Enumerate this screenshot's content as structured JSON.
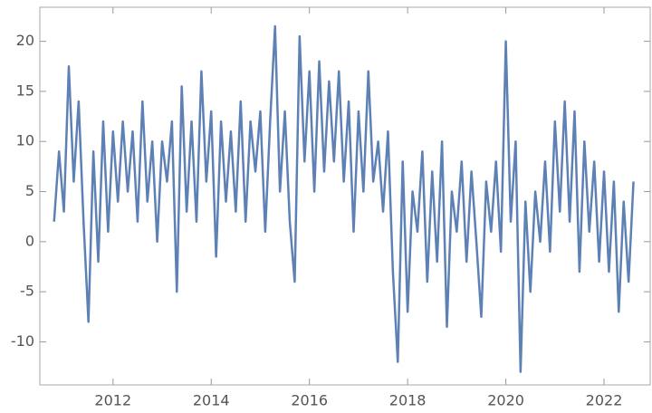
{
  "chart_data": {
    "type": "line",
    "color": "#5e81b5",
    "x": [
      2010.8,
      2010.9,
      2011.0,
      2011.1,
      2011.2,
      2011.3,
      2011.4,
      2011.5,
      2011.6,
      2011.7,
      2011.8,
      2011.9,
      2012.0,
      2012.1,
      2012.2,
      2012.3,
      2012.4,
      2012.5,
      2012.6,
      2012.7,
      2012.8,
      2012.9,
      2013.0,
      2013.1,
      2013.2,
      2013.3,
      2013.4,
      2013.5,
      2013.6,
      2013.7,
      2013.8,
      2013.9,
      2014.0,
      2014.1,
      2014.2,
      2014.3,
      2014.4,
      2014.5,
      2014.6,
      2014.7,
      2014.8,
      2014.9,
      2015.0,
      2015.1,
      2015.2,
      2015.3,
      2015.4,
      2015.5,
      2015.6,
      2015.7,
      2015.8,
      2015.9,
      2016.0,
      2016.1,
      2016.2,
      2016.3,
      2016.4,
      2016.5,
      2016.6,
      2016.7,
      2016.8,
      2016.9,
      2017.0,
      2017.1,
      2017.2,
      2017.3,
      2017.4,
      2017.5,
      2017.6,
      2017.7,
      2017.8,
      2017.9,
      2018.0,
      2018.1,
      2018.2,
      2018.3,
      2018.4,
      2018.5,
      2018.6,
      2018.7,
      2018.8,
      2018.9,
      2019.0,
      2019.1,
      2019.2,
      2019.3,
      2019.4,
      2019.5,
      2019.6,
      2019.7,
      2019.8,
      2019.9,
      2020.0,
      2020.1,
      2020.2,
      2020.3,
      2020.4,
      2020.5,
      2020.6,
      2020.7,
      2020.8,
      2020.9,
      2021.0,
      2021.1,
      2021.2,
      2021.3,
      2021.4,
      2021.5,
      2021.6,
      2021.7,
      2021.8,
      2021.9,
      2022.0,
      2022.1,
      2022.2,
      2022.3,
      2022.4,
      2022.5,
      2022.6
    ],
    "values": [
      2,
      9,
      3,
      17.5,
      6,
      14,
      2,
      -8,
      9,
      -2,
      12,
      1,
      11,
      4,
      12,
      5,
      11,
      2,
      14,
      4,
      10,
      0,
      10,
      6,
      12,
      -5,
      15.5,
      3,
      12,
      2,
      17,
      6,
      13,
      -1.5,
      12,
      4,
      11,
      3,
      14,
      2,
      12,
      7,
      13,
      1,
      12,
      21.5,
      5,
      13,
      2,
      -4,
      20.5,
      8,
      17,
      5,
      18,
      7,
      16,
      8,
      17,
      6,
      14,
      1,
      13,
      5,
      17,
      6,
      10,
      3,
      11,
      -3,
      -12,
      8,
      -7,
      5,
      1,
      9,
      -4,
      7,
      -2,
      10,
      -8.5,
      5,
      1,
      8,
      -2,
      7,
      0,
      -7.5,
      6,
      1,
      8,
      -1,
      20,
      2,
      10,
      -13,
      4,
      -5,
      5,
      0,
      8,
      -1,
      12,
      3,
      14,
      2,
      13,
      -3,
      10,
      1,
      8,
      -2,
      7,
      -3,
      6,
      -7,
      4,
      -4,
      6
    ],
    "xlim": [
      2010.51,
      2022.94
    ],
    "ylim": [
      -14.3,
      23.4
    ],
    "xticks": [
      2012,
      2014,
      2016,
      2018,
      2020,
      2022
    ],
    "yticks": [
      -10,
      -5,
      0,
      5,
      10,
      15,
      20
    ]
  }
}
